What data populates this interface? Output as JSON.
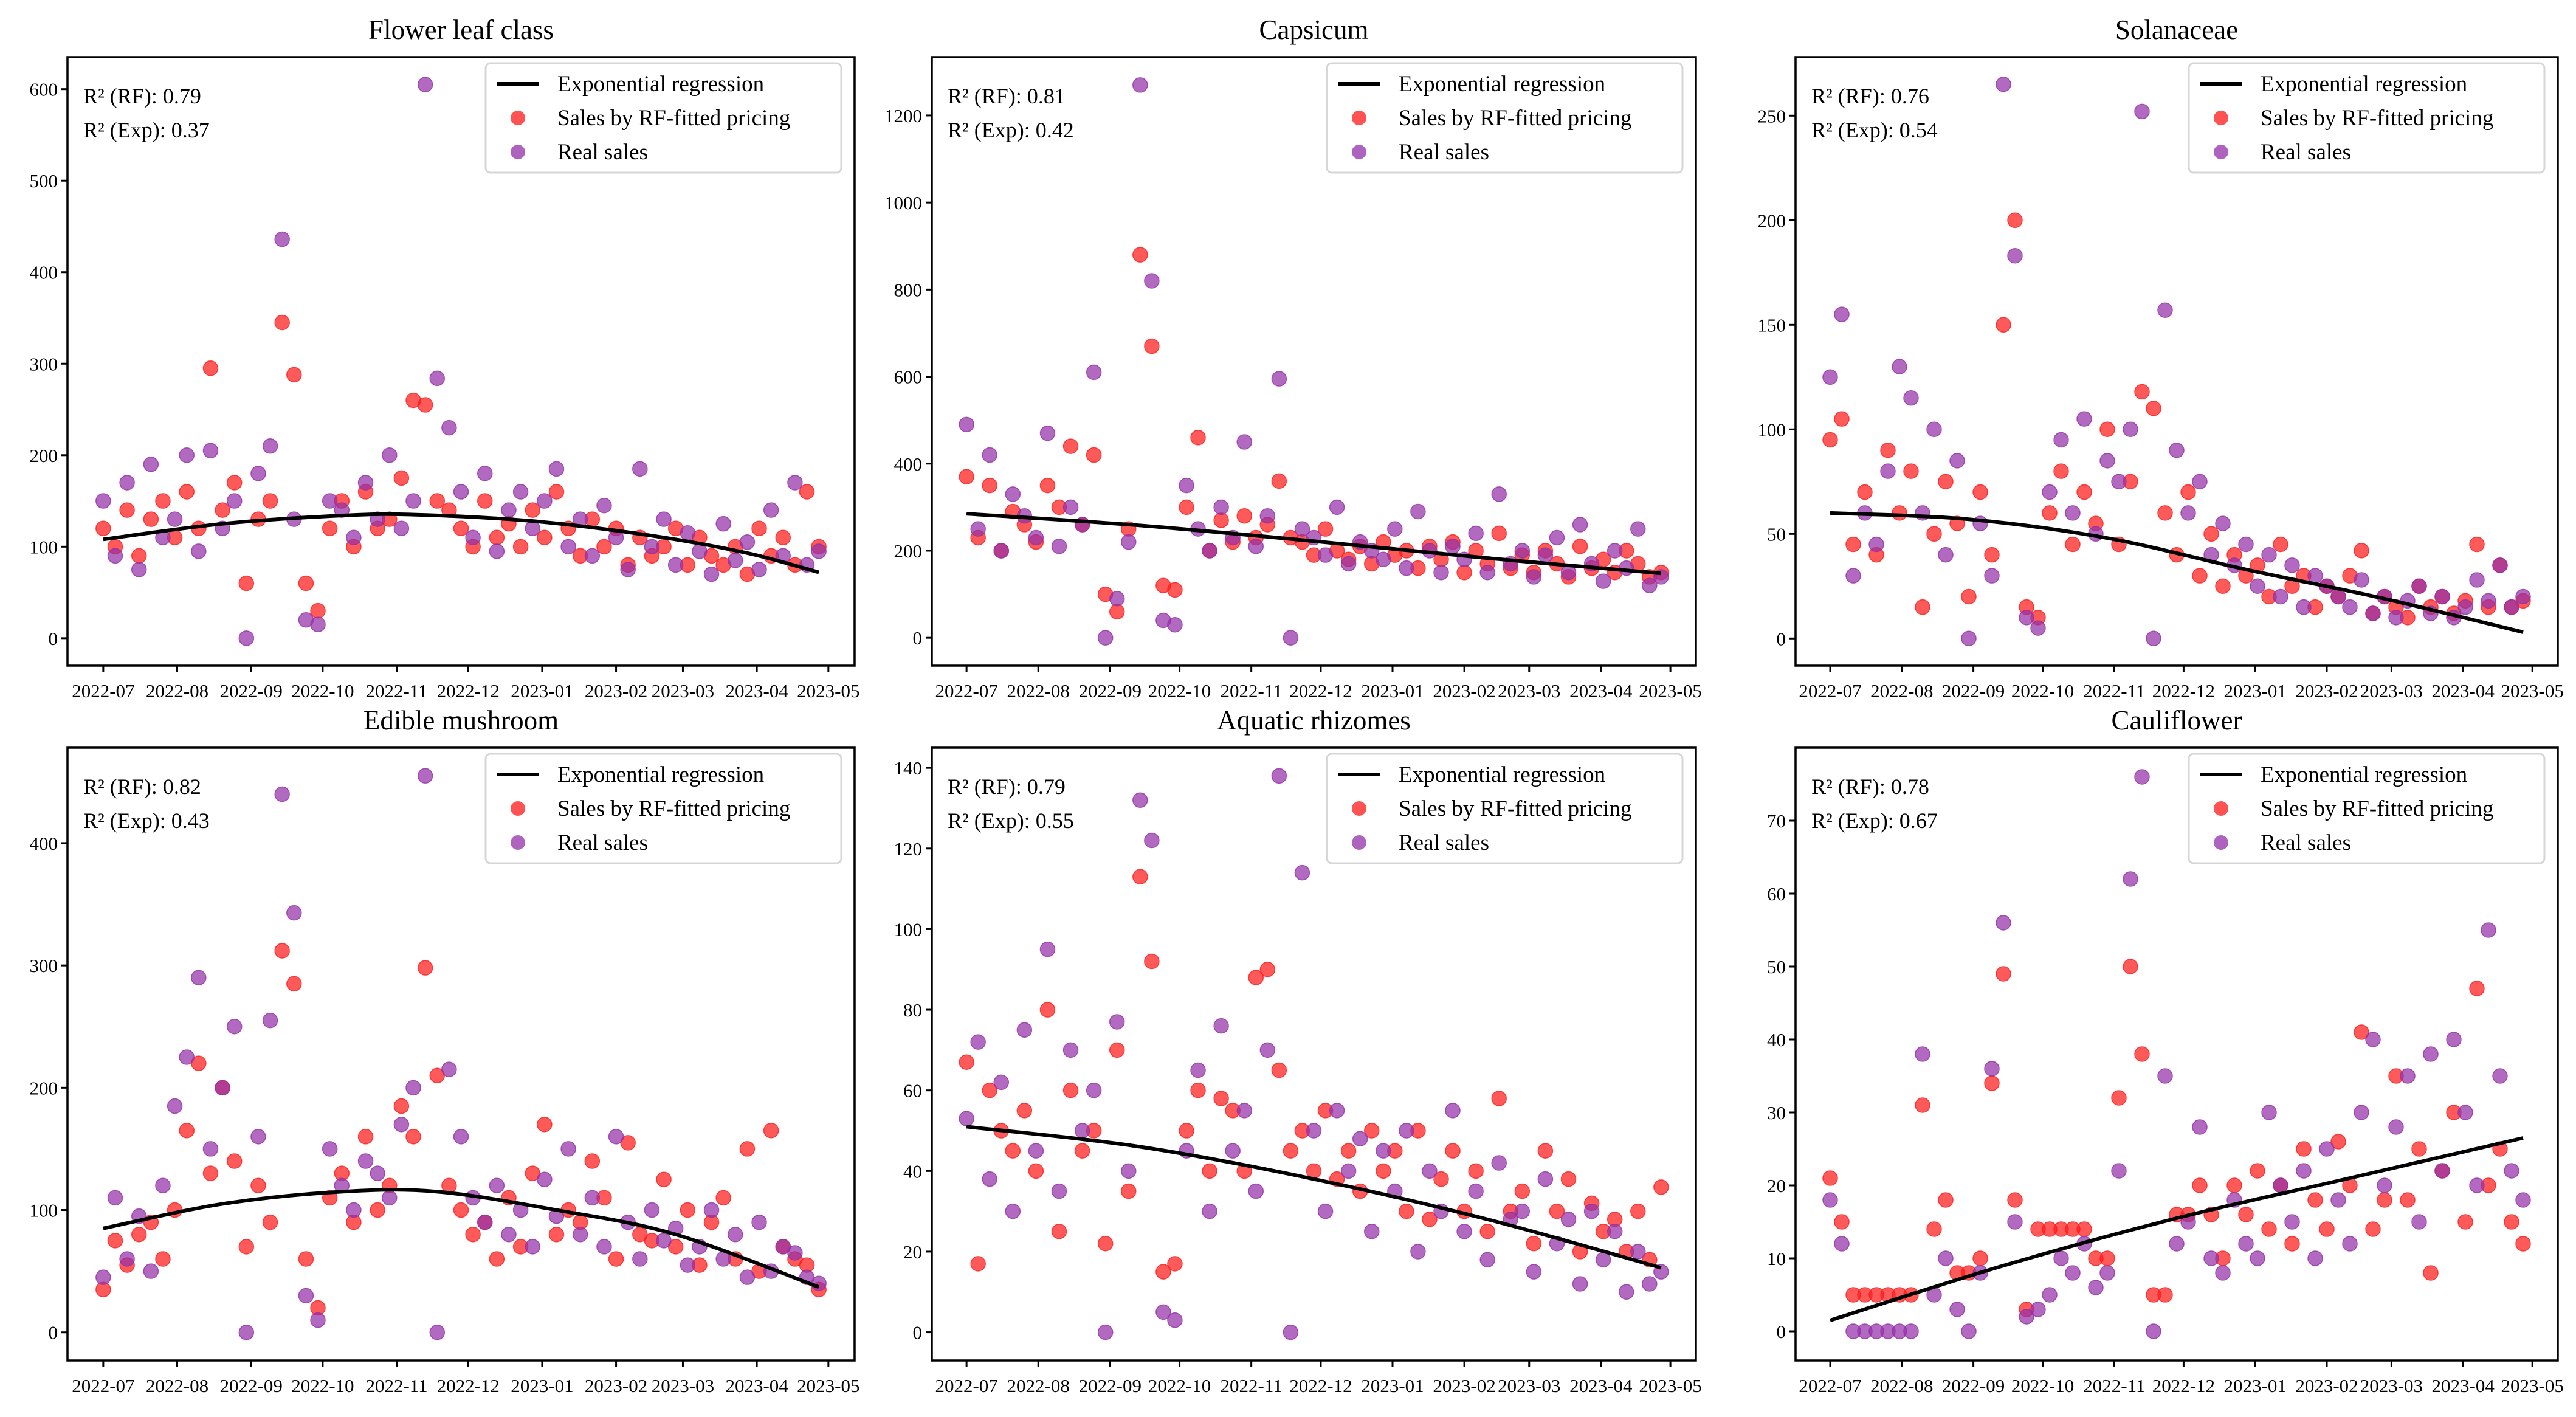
{
  "figure": {
    "legend_labels": [
      "Exponential regression",
      "Sales by RF-fitted pricing",
      "Real sales"
    ],
    "colors": {
      "regression": "#000000",
      "rf": "#ff1a1a",
      "real": "#9330a8"
    },
    "x_start": "2022-07-01",
    "x_step_days": 5,
    "x_range_days": [
      0,
      300
    ],
    "x_ticks": [
      {
        "day": 0,
        "label": "2022-07"
      },
      {
        "day": 31,
        "label": "2022-08"
      },
      {
        "day": 62,
        "label": "2022-09"
      },
      {
        "day": 92,
        "label": "2022-10"
      },
      {
        "day": 123,
        "label": "2022-11"
      },
      {
        "day": 153,
        "label": "2022-12"
      },
      {
        "day": 184,
        "label": "2023-01"
      },
      {
        "day": 215,
        "label": "2023-02"
      },
      {
        "day": 243,
        "label": "2023-03"
      },
      {
        "day": 274,
        "label": "2023-04"
      },
      {
        "day": 304,
        "label": "2023-05"
      }
    ]
  },
  "chart_data": [
    {
      "type": "scatter",
      "title": "Flower leaf class",
      "r2_rf": "R² (RF): 0.79",
      "r2_exp": "R² (Exp): 0.37",
      "ylim": [
        -30,
        635
      ],
      "yticks": [
        0,
        100,
        200,
        300,
        400,
        500,
        600
      ],
      "legend": "top-right",
      "real": [
        150,
        90,
        170,
        75,
        190,
        110,
        130,
        200,
        95,
        205,
        120,
        150,
        0,
        180,
        210,
        436,
        130,
        20,
        15,
        150,
        140,
        110,
        170,
        130,
        200,
        120,
        150,
        605,
        284,
        230,
        160,
        110,
        180,
        95,
        140,
        160,
        120,
        150,
        185,
        100,
        130,
        90,
        145,
        110,
        75,
        185,
        100,
        130,
        80,
        115,
        95,
        70,
        125,
        85,
        105,
        75,
        140,
        90,
        170,
        80,
        95
      ],
      "rf": [
        120,
        100,
        140,
        90,
        130,
        150,
        110,
        160,
        120,
        295,
        140,
        170,
        60,
        130,
        150,
        345,
        288,
        60,
        30,
        120,
        150,
        100,
        160,
        120,
        130,
        175,
        260,
        255,
        150,
        140,
        120,
        100,
        150,
        110,
        125,
        100,
        140,
        110,
        160,
        120,
        90,
        130,
        100,
        120,
        80,
        110,
        90,
        100,
        120,
        80,
        110,
        90,
        80,
        100,
        70,
        120,
        90,
        110,
        80,
        160,
        100
      ],
      "regression": [
        [
          0,
          108
        ],
        [
          50,
          125
        ],
        [
          100,
          134
        ],
        [
          130,
          135
        ],
        [
          180,
          128
        ],
        [
          230,
          112
        ],
        [
          270,
          93
        ],
        [
          300,
          72
        ]
      ]
    },
    {
      "type": "scatter",
      "title": "Capsicum",
      "r2_rf": "R² (RF): 0.81",
      "r2_exp": "R² (Exp): 0.42",
      "ylim": [
        -64,
        1334
      ],
      "yticks": [
        0,
        200,
        400,
        600,
        800,
        1000,
        1200
      ],
      "legend": "top-right",
      "real": [
        490,
        250,
        420,
        200,
        330,
        280,
        230,
        470,
        210,
        300,
        260,
        610,
        0,
        90,
        220,
        1270,
        820,
        40,
        30,
        350,
        250,
        200,
        300,
        230,
        450,
        210,
        280,
        595,
        0,
        250,
        230,
        190,
        300,
        170,
        220,
        200,
        180,
        250,
        160,
        290,
        200,
        150,
        210,
        180,
        240,
        150,
        330,
        170,
        200,
        140,
        190,
        230,
        150,
        260,
        170,
        130,
        200,
        160,
        250,
        120,
        140
      ],
      "rf": [
        370,
        230,
        350,
        200,
        290,
        260,
        220,
        350,
        300,
        440,
        260,
        420,
        100,
        60,
        250,
        880,
        670,
        120,
        110,
        300,
        460,
        200,
        270,
        220,
        280,
        230,
        260,
        360,
        230,
        220,
        190,
        250,
        200,
        180,
        210,
        170,
        220,
        190,
        200,
        160,
        210,
        180,
        220,
        150,
        200,
        170,
        240,
        160,
        190,
        150,
        200,
        170,
        140,
        210,
        160,
        180,
        150,
        200,
        170,
        140,
        150
      ],
      "regression": [
        [
          0,
          285
        ],
        [
          75,
          258
        ],
        [
          150,
          222
        ],
        [
          225,
          183
        ],
        [
          300,
          148
        ]
      ]
    },
    {
      "type": "scatter",
      "title": "Solanaceae",
      "r2_rf": "R² (RF): 0.76",
      "r2_exp": "R² (Exp): 0.54",
      "ylim": [
        -13,
        278
      ],
      "yticks": [
        0,
        50,
        100,
        150,
        200,
        250
      ],
      "legend": "top-right",
      "real": [
        125,
        155,
        30,
        60,
        45,
        80,
        130,
        115,
        60,
        100,
        40,
        85,
        0,
        55,
        30,
        265,
        183,
        10,
        5,
        70,
        95,
        60,
        105,
        50,
        85,
        75,
        100,
        252,
        0,
        157,
        90,
        60,
        75,
        40,
        55,
        35,
        45,
        25,
        40,
        20,
        35,
        15,
        30,
        25,
        20,
        15,
        28,
        12,
        20,
        10,
        18,
        25,
        12,
        20,
        10,
        15,
        28,
        18,
        35,
        15,
        20
      ],
      "rf": [
        95,
        105,
        45,
        70,
        40,
        90,
        60,
        80,
        15,
        50,
        75,
        55,
        20,
        70,
        40,
        150,
        200,
        15,
        10,
        60,
        80,
        45,
        70,
        55,
        100,
        45,
        75,
        118,
        110,
        60,
        40,
        70,
        30,
        50,
        25,
        40,
        30,
        35,
        20,
        45,
        25,
        30,
        15,
        25,
        20,
        30,
        42,
        12,
        20,
        15,
        10,
        25,
        15,
        20,
        12,
        18,
        45,
        15,
        35,
        15,
        18
      ],
      "regression": [
        [
          0,
          60
        ],
        [
          60,
          57
        ],
        [
          120,
          48
        ],
        [
          180,
          33
        ],
        [
          240,
          19
        ],
        [
          300,
          3
        ]
      ]
    },
    {
      "type": "scatter",
      "title": "Edible mushroom",
      "r2_rf": "R² (RF): 0.82",
      "r2_exp": "R² (Exp): 0.43",
      "ylim": [
        -23,
        478
      ],
      "yticks": [
        0,
        100,
        200,
        300,
        400
      ],
      "legend": "top-right",
      "real": [
        45,
        110,
        60,
        95,
        50,
        120,
        185,
        225,
        290,
        150,
        200,
        250,
        0,
        160,
        255,
        440,
        343,
        30,
        10,
        150,
        120,
        100,
        140,
        130,
        110,
        170,
        200,
        455,
        0,
        215,
        160,
        110,
        90,
        120,
        80,
        100,
        70,
        125,
        95,
        150,
        80,
        110,
        70,
        160,
        90,
        60,
        100,
        75,
        85,
        55,
        70,
        100,
        60,
        80,
        45,
        90,
        50,
        70,
        65,
        45,
        40
      ],
      "rf": [
        35,
        75,
        55,
        80,
        90,
        60,
        100,
        165,
        220,
        130,
        200,
        140,
        70,
        120,
        90,
        312,
        285,
        60,
        20,
        110,
        130,
        90,
        160,
        100,
        120,
        185,
        160,
        298,
        210,
        120,
        100,
        80,
        90,
        60,
        110,
        70,
        130,
        170,
        80,
        100,
        90,
        140,
        110,
        60,
        155,
        80,
        75,
        125,
        70,
        100,
        55,
        90,
        110,
        60,
        150,
        50,
        165,
        70,
        60,
        55,
        35
      ],
      "regression": [
        [
          0,
          85
        ],
        [
          50,
          105
        ],
        [
          100,
          115
        ],
        [
          140,
          115
        ],
        [
          190,
          100
        ],
        [
          240,
          80
        ],
        [
          300,
          37
        ]
      ]
    },
    {
      "type": "scatter",
      "title": "Aquatic rhizomes",
      "r2_rf": "R² (RF): 0.79",
      "r2_exp": "R² (Exp): 0.55",
      "ylim": [
        -7,
        145
      ],
      "yticks": [
        0,
        20,
        40,
        60,
        80,
        100,
        120,
        140
      ],
      "legend": "top-right",
      "real": [
        53,
        72,
        38,
        62,
        30,
        75,
        45,
        95,
        35,
        70,
        50,
        60,
        0,
        77,
        40,
        132,
        122,
        5,
        3,
        45,
        65,
        30,
        76,
        45,
        55,
        35,
        70,
        138,
        0,
        114,
        50,
        30,
        55,
        40,
        48,
        25,
        45,
        35,
        50,
        20,
        40,
        30,
        55,
        25,
        35,
        18,
        42,
        28,
        30,
        15,
        38,
        22,
        28,
        12,
        30,
        18,
        25,
        10,
        20,
        12,
        15
      ],
      "rf": [
        67,
        17,
        60,
        50,
        45,
        55,
        40,
        80,
        25,
        60,
        45,
        50,
        22,
        70,
        35,
        113,
        92,
        15,
        17,
        50,
        60,
        40,
        58,
        55,
        40,
        88,
        90,
        65,
        45,
        50,
        40,
        55,
        38,
        45,
        35,
        50,
        40,
        45,
        30,
        50,
        28,
        38,
        45,
        30,
        40,
        25,
        58,
        30,
        35,
        22,
        45,
        30,
        38,
        20,
        32,
        25,
        28,
        20,
        30,
        18,
        36
      ],
      "regression": [
        [
          0,
          51
        ],
        [
          75,
          46
        ],
        [
          150,
          38
        ],
        [
          225,
          28
        ],
        [
          300,
          16
        ]
      ]
    },
    {
      "type": "scatter",
      "title": "Cauliflower",
      "r2_rf": "R² (RF): 0.78",
      "r2_exp": "R² (Exp): 0.67",
      "ylim": [
        -4,
        80
      ],
      "yticks": [
        0,
        10,
        20,
        30,
        40,
        50,
        60,
        70
      ],
      "legend": "top-right",
      "real": [
        18,
        12,
        0,
        0,
        0,
        0,
        0,
        0,
        38,
        5,
        10,
        3,
        0,
        8,
        36,
        56,
        15,
        2,
        3,
        5,
        10,
        8,
        12,
        6,
        8,
        22,
        62,
        76,
        0,
        35,
        12,
        15,
        28,
        10,
        8,
        18,
        12,
        10,
        30,
        20,
        15,
        22,
        10,
        25,
        18,
        12,
        30,
        40,
        20,
        28,
        35,
        15,
        38,
        22,
        40,
        30,
        20,
        55,
        35,
        22,
        18
      ],
      "rf": [
        21,
        15,
        5,
        5,
        5,
        5,
        5,
        5,
        31,
        14,
        18,
        8,
        8,
        10,
        34,
        49,
        18,
        3,
        14,
        14,
        14,
        14,
        14,
        10,
        10,
        32,
        50,
        38,
        5,
        5,
        16,
        16,
        20,
        16,
        10,
        20,
        16,
        22,
        14,
        20,
        12,
        25,
        18,
        14,
        26,
        20,
        41,
        14,
        18,
        35,
        18,
        25,
        8,
        22,
        30,
        15,
        47,
        20,
        25,
        15,
        12
      ],
      "regression": [
        [
          0,
          1.5
        ],
        [
          75,
          9
        ],
        [
          150,
          15.5
        ],
        [
          225,
          21
        ],
        [
          300,
          26.5
        ]
      ]
    }
  ]
}
